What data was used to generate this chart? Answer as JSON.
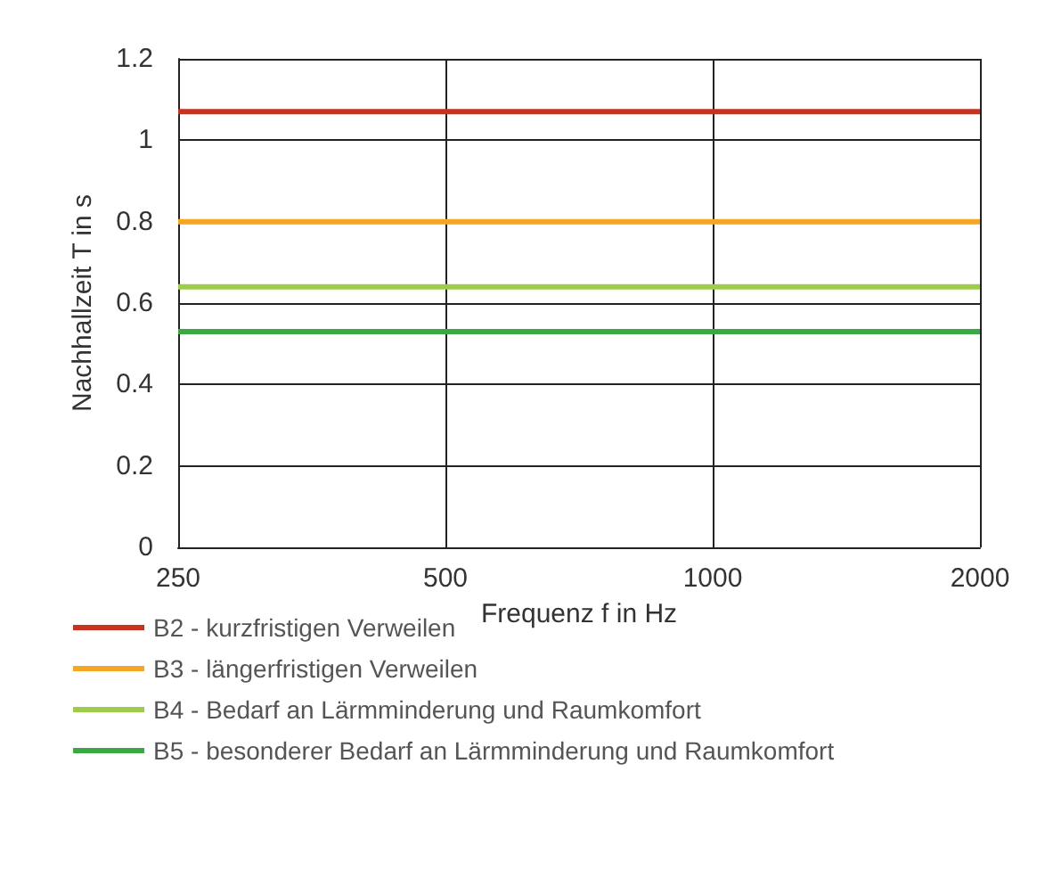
{
  "chart_data": {
    "type": "line",
    "xlabel": "Frequenz f in Hz",
    "ylabel": "Nachhallzeit T in s",
    "log": "x",
    "x": [
      250,
      2000
    ],
    "xlim": [
      250,
      2000
    ],
    "xticks": [
      250,
      500,
      1000,
      2000
    ],
    "ylim": [
      0,
      1.2
    ],
    "yticks": [
      0,
      0.2,
      0.4,
      0.6,
      0.8,
      1,
      1.2
    ],
    "grid": true,
    "legend": "bottom",
    "marker": "none",
    "line_style": "solid",
    "series": [
      {
        "name": "B2 - kurzfristigen Verweilen",
        "color": "#c8321e",
        "values": [
          1.07,
          1.07
        ]
      },
      {
        "name": "B3 - längerfristigen Verweilen",
        "color": "#f5a623",
        "values": [
          0.8,
          0.8
        ]
      },
      {
        "name": "B4 - Bedarf an Lärmminderung und Raumkomfort",
        "color": "#9ccc4a",
        "values": [
          0.64,
          0.64
        ]
      },
      {
        "name": "B5 - besonderer Bedarf an Lärmminderung und Raumkomfort",
        "color": "#3aa843",
        "values": [
          0.53,
          0.53
        ]
      }
    ]
  }
}
